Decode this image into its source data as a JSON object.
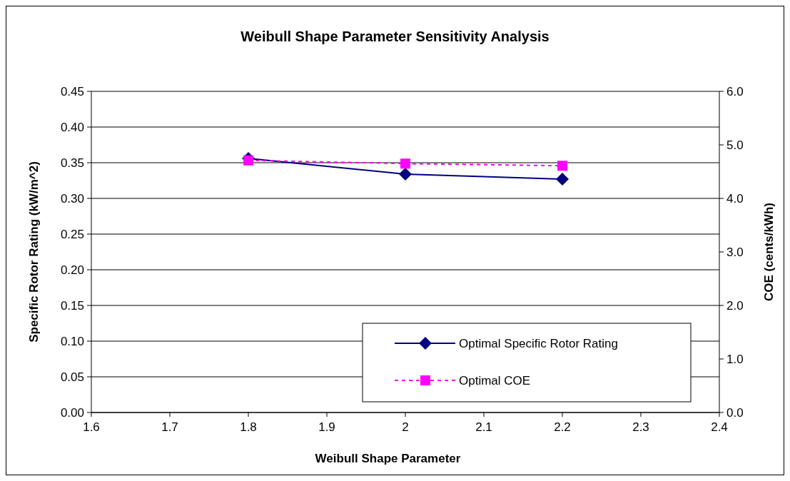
{
  "chart_data": {
    "type": "line",
    "title": "Weibull Shape Parameter Sensitivity Analysis",
    "xlabel": "Weibull Shape Parameter",
    "ylabel": "Specific Rotor Rating (kW/m^2)",
    "y2label": "COE (cents/kWh)",
    "xlim": [
      1.6,
      2.4
    ],
    "xticks": [
      1.6,
      1.7,
      1.8,
      1.9,
      2,
      2.1,
      2.2,
      2.3,
      2.4
    ],
    "ylim": [
      0,
      0.45
    ],
    "yticks": [
      {
        "value": 0,
        "label": "0.00"
      },
      {
        "value": 0.05,
        "label": "0.05"
      },
      {
        "value": 0.1,
        "label": "0.10"
      },
      {
        "value": 0.15,
        "label": "0.15"
      },
      {
        "value": 0.2,
        "label": "0.20"
      },
      {
        "value": 0.25,
        "label": "0.25"
      },
      {
        "value": 0.3,
        "label": "0.30"
      },
      {
        "value": 0.35,
        "label": "0.35"
      },
      {
        "value": 0.4,
        "label": "0.40"
      },
      {
        "value": 0.45,
        "label": "0.45"
      }
    ],
    "y2lim": [
      0,
      6
    ],
    "y2ticks": [
      {
        "value": 0,
        "label": "0.0"
      },
      {
        "value": 1,
        "label": "1.0"
      },
      {
        "value": 2,
        "label": "2.0"
      },
      {
        "value": 3,
        "label": "3.0"
      },
      {
        "value": 4,
        "label": "4.0"
      },
      {
        "value": 5,
        "label": "5.0"
      },
      {
        "value": 6,
        "label": "6.0"
      }
    ],
    "grid": "y",
    "legend": "bottom right",
    "series": [
      {
        "name": "Optimal Specific Rotor Rating",
        "color": "#000080",
        "x": [
          1.8,
          2,
          2.2
        ],
        "values": [
          0.356,
          0.334,
          0.327
        ],
        "marker": "diamond",
        "line_style": "solid"
      },
      {
        "name": "Optimal COE",
        "color": "#ff00ff",
        "x": [
          1.8,
          2,
          2.2
        ],
        "values": [
          4.71,
          4.65,
          4.61
        ],
        "axis": "y2",
        "marker": "square",
        "line_style": "dashed"
      }
    ]
  }
}
